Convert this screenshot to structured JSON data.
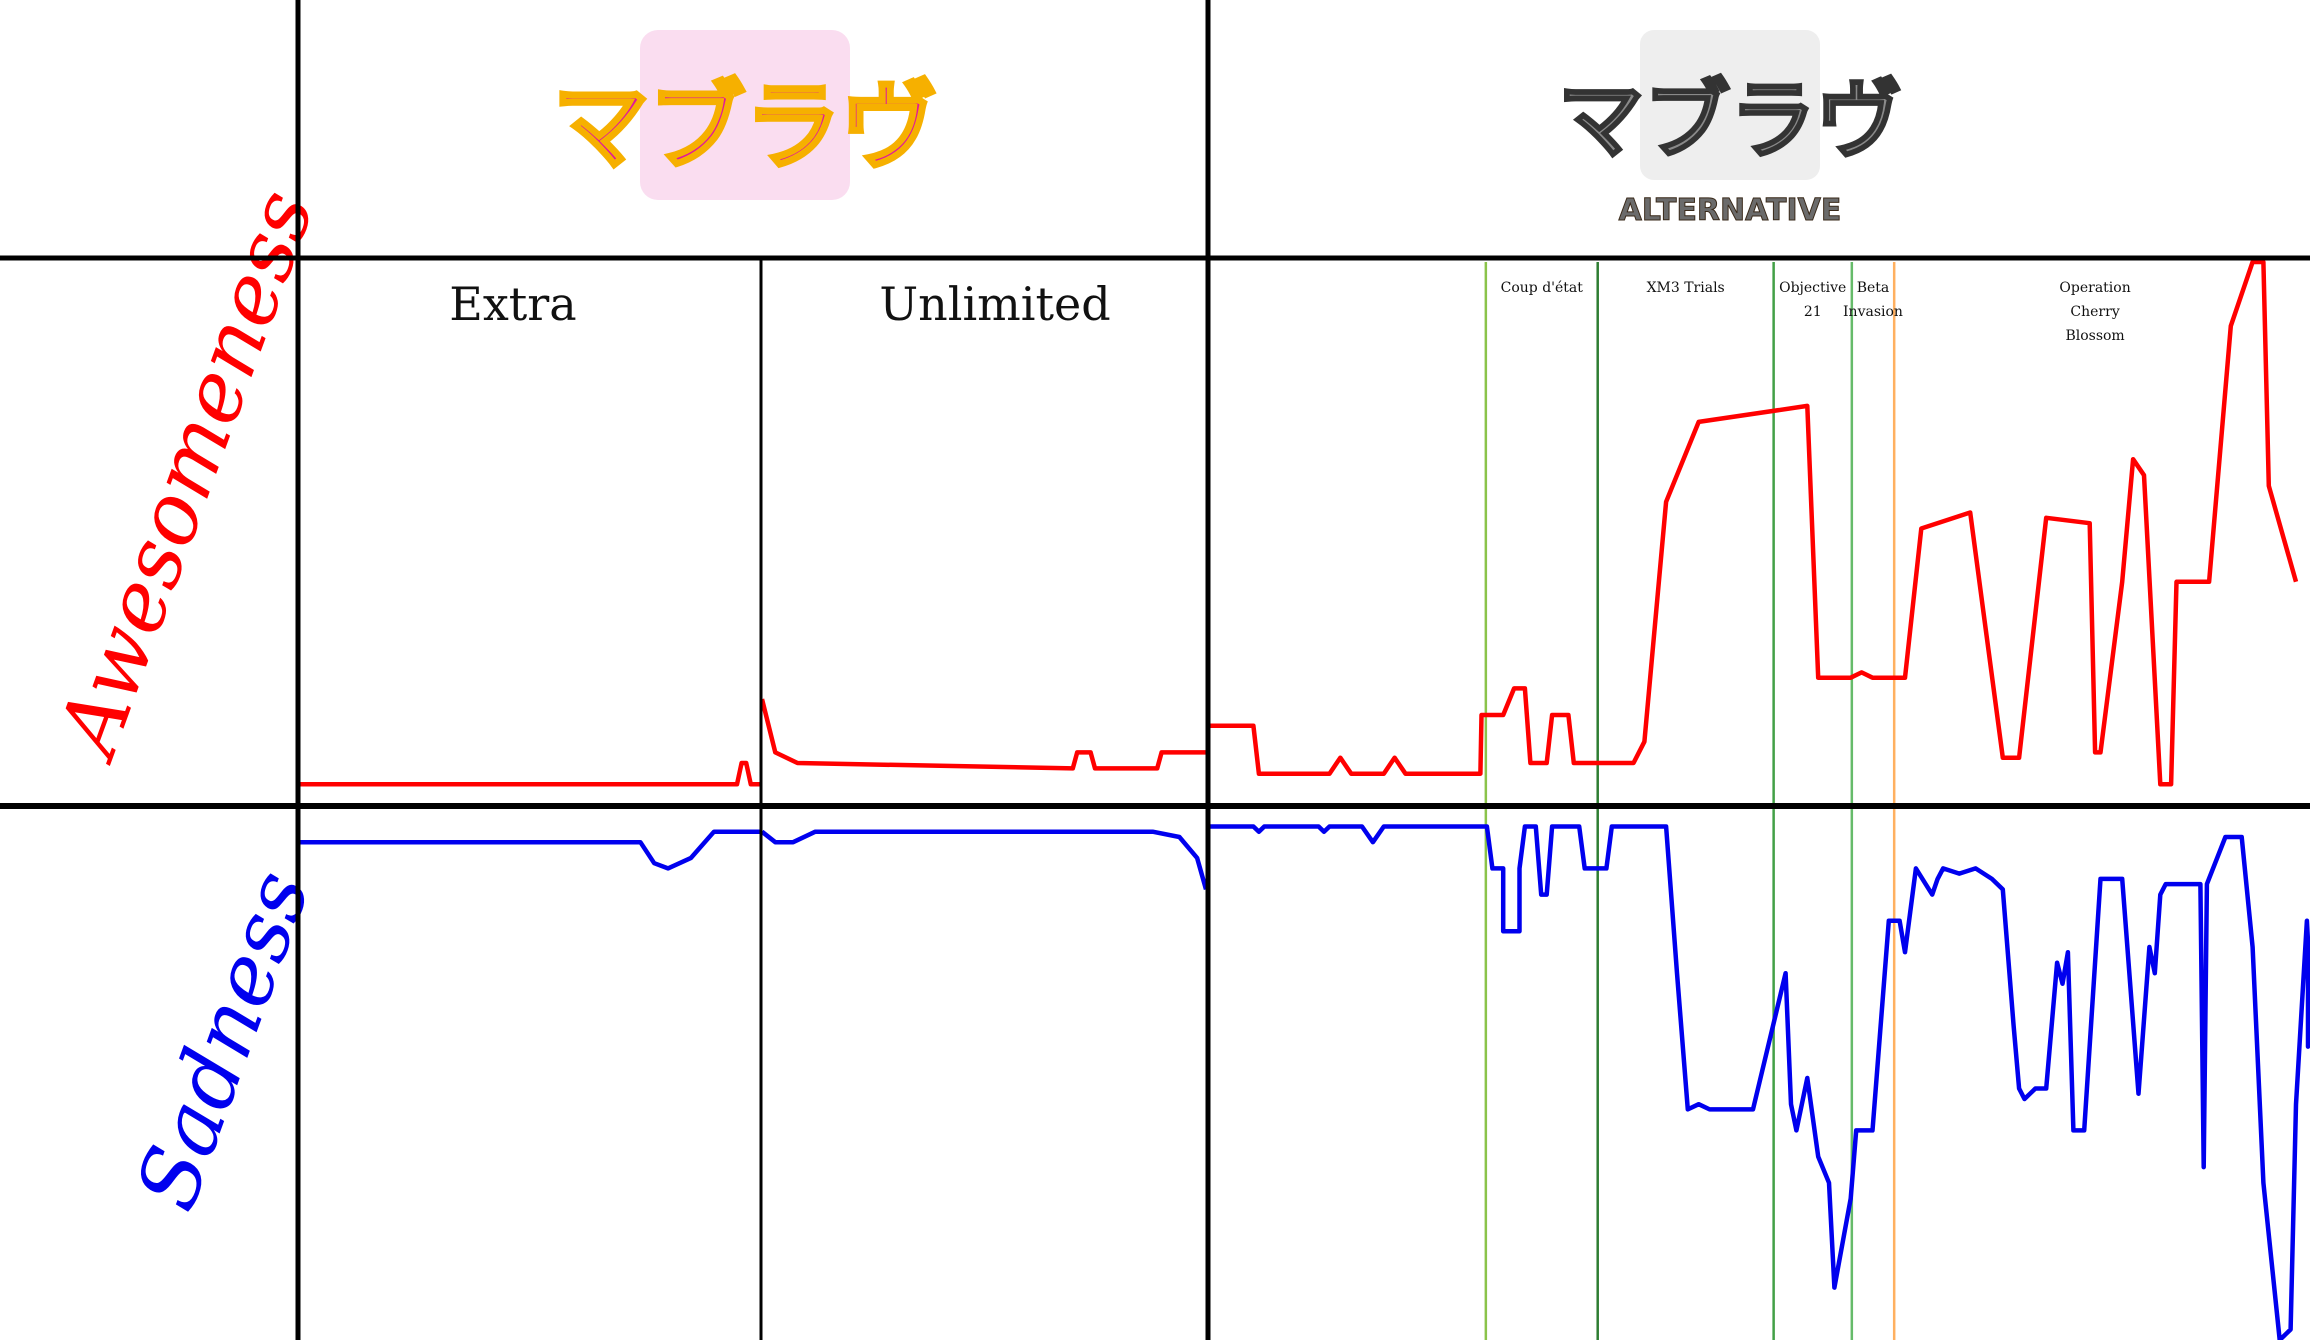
{
  "header": {
    "left_logo_text": "マブラヴ",
    "right_logo_text": "マブラヴ",
    "right_logo_subtitle": "ALTERNATIVE"
  },
  "rows": {
    "awesomeness_label": "Awesomeness",
    "sadness_label": "Sadness"
  },
  "columns": {
    "extra_label": "Extra",
    "unlimited_label": "Unlimited"
  },
  "arcs": [
    {
      "label_lines": [
        "Coup d'état"
      ],
      "color": "#8bc34a"
    },
    {
      "label_lines": [
        "XM3 Trials"
      ],
      "color": "#2e7d32"
    },
    {
      "label_lines": [
        "Objective",
        "21"
      ],
      "color": "#43a047"
    },
    {
      "label_lines": [
        "Beta",
        "Invasion"
      ],
      "color": "#66bb6a"
    },
    {
      "label_lines": [
        "Operation",
        "Cherry",
        "Blossom"
      ],
      "color": "#ffb060"
    }
  ],
  "colors": {
    "awesomeness": "#ff0000",
    "sadness": "#0000ee",
    "grid": "#000000",
    "logo_left": "#e0189c",
    "logo_right": "#8a8a8a"
  },
  "chart_data": {
    "type": "line",
    "y_axis_awesomeness": [
      0,
      100
    ],
    "y_axis_sadness": [
      0,
      100
    ],
    "grid": true,
    "legend": "none",
    "series": [
      {
        "name": "Awesomeness",
        "segments": [
          {
            "column": "Extra",
            "points": [
              [
                0,
                2
              ],
              [
                95,
                2
              ],
              [
                96,
                6
              ],
              [
                97,
                6
              ],
              [
                98,
                2
              ],
              [
                100,
                2
              ]
            ]
          },
          {
            "column": "Unlimited",
            "points": [
              [
                0,
                18
              ],
              [
                3,
                8
              ],
              [
                8,
                6
              ],
              [
                70,
                5
              ],
              [
                71,
                8
              ],
              [
                74,
                8
              ],
              [
                75,
                5
              ],
              [
                89,
                5
              ],
              [
                90,
                8
              ],
              [
                100,
                8
              ]
            ]
          },
          {
            "column": "Alternative",
            "points": [
              [
                0,
                13
              ],
              [
                4,
                13
              ],
              [
                4.5,
                4
              ],
              [
                11,
                4
              ],
              [
                12,
                7
              ],
              [
                13,
                4
              ],
              [
                16,
                4
              ],
              [
                17,
                7
              ],
              [
                18,
                4
              ],
              [
                24.9,
                4
              ],
              [
                25,
                15
              ],
              [
                27,
                15
              ],
              [
                28,
                20
              ],
              [
                29,
                20
              ],
              [
                29.5,
                6
              ],
              [
                31,
                6
              ],
              [
                31.5,
                15
              ],
              [
                33,
                15
              ],
              [
                33.5,
                6
              ],
              [
                39,
                6
              ],
              [
                40,
                10
              ],
              [
                42,
                55
              ],
              [
                45,
                70
              ],
              [
                55,
                73
              ],
              [
                56,
                22
              ],
              [
                59,
                22
              ],
              [
                60,
                23
              ],
              [
                61,
                22
              ],
              [
                64,
                22
              ],
              [
                65.5,
                50
              ],
              [
                70,
                53
              ],
              [
                73,
                7
              ],
              [
                74.5,
                7
              ],
              [
                77,
                52
              ],
              [
                81,
                51
              ],
              [
                81.5,
                8
              ],
              [
                82,
                8
              ],
              [
                84,
                40
              ],
              [
                85,
                63
              ],
              [
                86,
                60
              ],
              [
                87.5,
                2
              ],
              [
                88.5,
                2
              ],
              [
                89,
                40
              ],
              [
                92,
                40
              ],
              [
                94,
                88
              ],
              [
                96,
                100
              ],
              [
                97,
                100
              ],
              [
                97.5,
                58
              ],
              [
                100,
                40
              ]
            ]
          }
        ]
      },
      {
        "name": "Sadness",
        "segments": [
          {
            "column": "Extra",
            "points": [
              [
                0,
                95
              ],
              [
                74,
                95
              ],
              [
                77,
                91
              ],
              [
                80,
                90
              ],
              [
                85,
                92
              ],
              [
                90,
                97
              ],
              [
                100,
                97
              ]
            ]
          },
          {
            "column": "Unlimited",
            "points": [
              [
                0,
                97
              ],
              [
                3,
                95
              ],
              [
                7,
                95
              ],
              [
                12,
                97
              ],
              [
                88,
                97
              ],
              [
                94,
                96
              ],
              [
                98,
                92
              ],
              [
                100,
                86
              ]
            ]
          },
          {
            "column": "Alternative",
            "points": [
              [
                0,
                98
              ],
              [
                4,
                98
              ],
              [
                4.5,
                97
              ],
              [
                5,
                98
              ],
              [
                10,
                98
              ],
              [
                10.5,
                97
              ],
              [
                11,
                98
              ],
              [
                14,
                98
              ],
              [
                15,
                95
              ],
              [
                16,
                98
              ],
              [
                24.9,
                98
              ],
              [
                25.5,
                98
              ],
              [
                26,
                90
              ],
              [
                27,
                90
              ],
              [
                27,
                78
              ],
              [
                28.5,
                78
              ],
              [
                28.5,
                90
              ],
              [
                29,
                98
              ],
              [
                30,
                98
              ],
              [
                30.5,
                85
              ],
              [
                31,
                85
              ],
              [
                31.5,
                98
              ],
              [
                34,
                98
              ],
              [
                34.5,
                90
              ],
              [
                36.5,
                90
              ],
              [
                37,
                98
              ],
              [
                42,
                98
              ],
              [
                43,
                70
              ],
              [
                44,
                44
              ],
              [
                45,
                45
              ],
              [
                46,
                44
              ],
              [
                50,
                44
              ],
              [
                53,
                70
              ],
              [
                53.5,
                45
              ],
              [
                54,
                40
              ],
              [
                55,
                50
              ],
              [
                56,
                35
              ],
              [
                57,
                30
              ],
              [
                57.5,
                10
              ],
              [
                59,
                27
              ],
              [
                59.5,
                40
              ],
              [
                61,
                40
              ],
              [
                62.5,
                80
              ],
              [
                63.5,
                80
              ],
              [
                64,
                74
              ],
              [
                65,
                90
              ],
              [
                66.5,
                85
              ],
              [
                67,
                88
              ],
              [
                67.5,
                90
              ],
              [
                69,
                89
              ],
              [
                70.5,
                90
              ],
              [
                72,
                88
              ],
              [
                73,
                86
              ],
              [
                74,
                60
              ],
              [
                74.5,
                48
              ],
              [
                75,
                46
              ],
              [
                76,
                48
              ],
              [
                77,
                48
              ],
              [
                78,
                72
              ],
              [
                78.5,
                68
              ],
              [
                79,
                74
              ],
              [
                79.5,
                40
              ],
              [
                80.5,
                40
              ],
              [
                82,
                88
              ],
              [
                84,
                88
              ],
              [
                85.5,
                47
              ],
              [
                86.5,
                75
              ],
              [
                87,
                70
              ],
              [
                87.5,
                85
              ],
              [
                88,
                87
              ],
              [
                90,
                87
              ],
              [
                91.2,
                87
              ],
              [
                91.5,
                33
              ],
              [
                91.8,
                87
              ],
              [
                93.5,
                96
              ],
              [
                95,
                96
              ],
              [
                96,
                75
              ],
              [
                97,
                30
              ],
              [
                98.5,
                0
              ],
              [
                99.5,
                2
              ],
              [
                100,
                45
              ],
              [
                101,
                80
              ],
              [
                102,
                76
              ],
              [
                103,
                62
              ],
              [
                104,
                59
              ],
              [
                105,
                56
              ],
              [
                106,
                60
              ],
              [
                107,
                59
              ],
              [
                108,
                60
              ],
              [
                110,
                61
              ]
            ]
          }
        ]
      }
    ]
  }
}
